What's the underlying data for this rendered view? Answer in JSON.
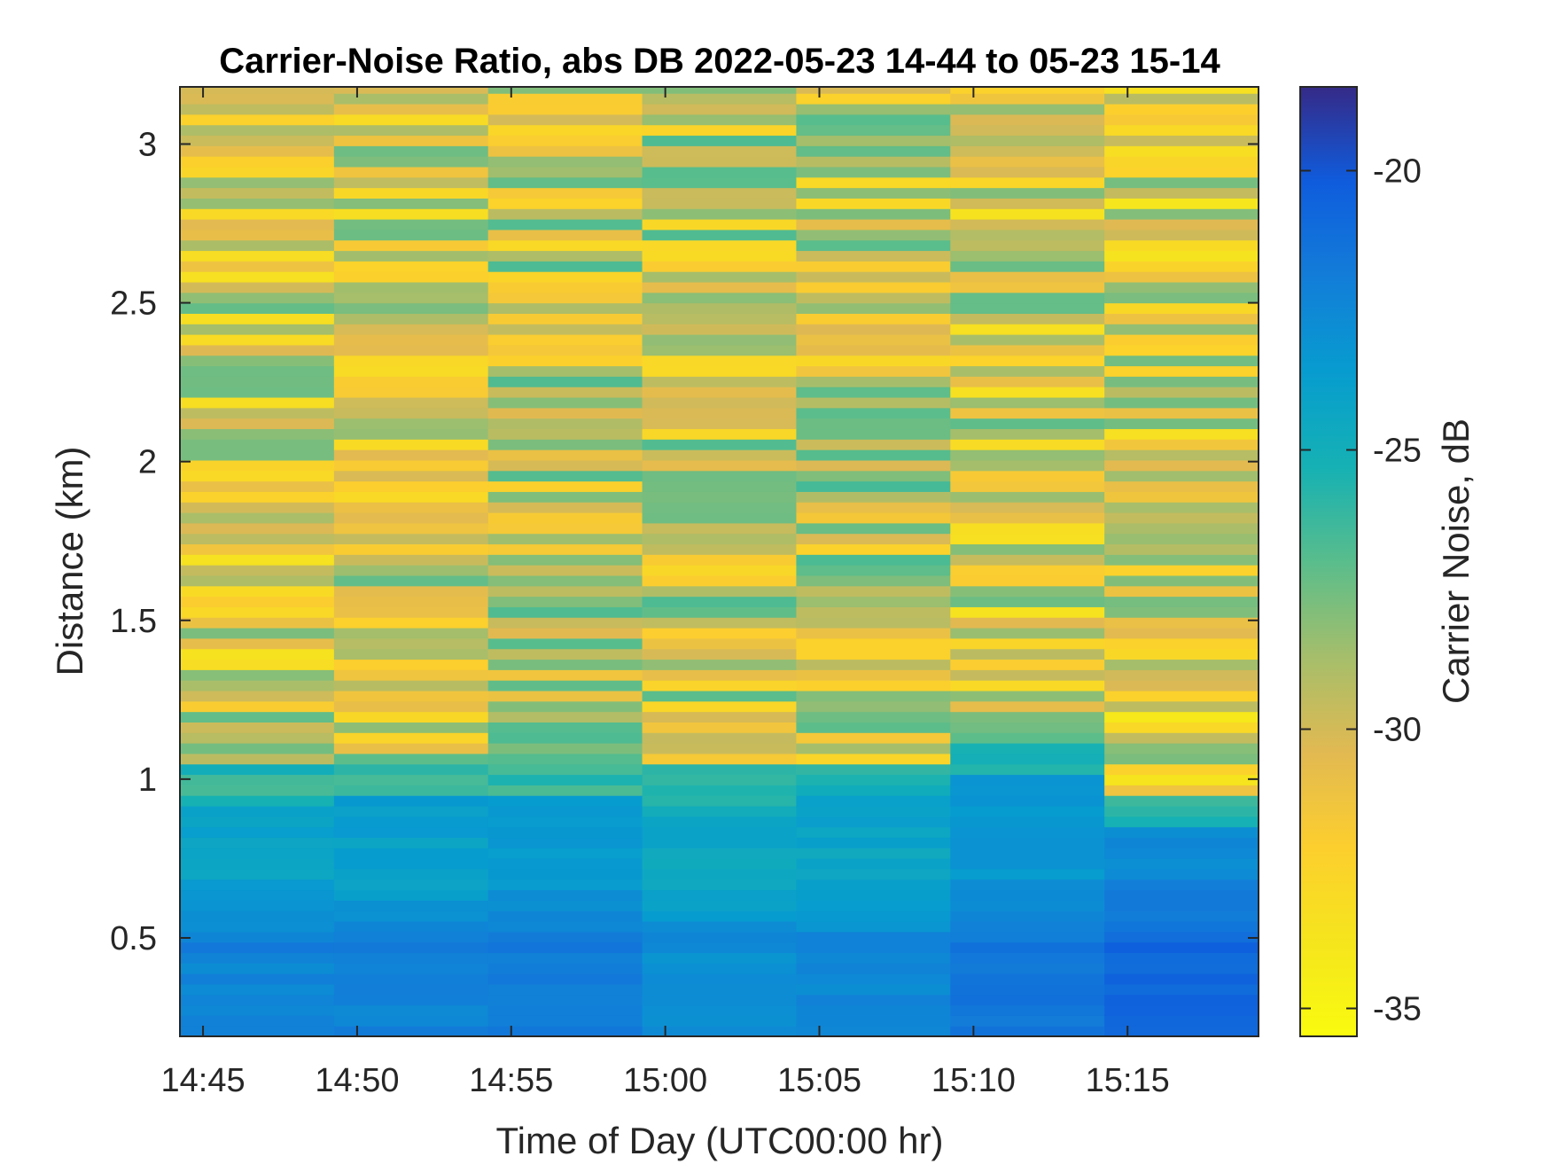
{
  "chart_data": {
    "type": "heatmap",
    "title": "Carrier-Noise Ratio, abs DB 2022-05-23 14-44 to 05-23 15-14",
    "xlabel": "Time of Day (UTC00:00 hr)",
    "ylabel": "Distance (km)",
    "colorbar_label": "Carrier Noise, dB",
    "x_ticks": [
      "14:45",
      "14:50",
      "14:55",
      "15:00",
      "15:05",
      "15:10",
      "15:15"
    ],
    "y_ticks": [
      "0.5",
      "1",
      "1.5",
      "2",
      "2.5",
      "3"
    ],
    "colorbar_ticks": [
      "-20",
      "-25",
      "-30",
      "-35"
    ],
    "colorbar_range": [
      -35.5,
      -18.5
    ],
    "colormap": "parula",
    "colormap_reversed": true,
    "xlim": [
      "14:44:15",
      "15:19:15"
    ],
    "ylim": [
      0.19,
      3.18
    ],
    "time_columns": [
      "14:44:15",
      "14:49:15",
      "14:54:15",
      "14:59:15",
      "15:04:15",
      "15:09:15",
      "15:14:15"
    ],
    "column_duration_minutes": 5,
    "distance_bin_km": 0.033,
    "near_range_boundary_km": [
      0.93,
      0.95,
      0.95,
      0.92,
      0.94,
      1.0,
      0.84
    ],
    "near_range_mean_db": [
      -21.2,
      -21.0,
      -20.6,
      -21.6,
      -21.3,
      -20.4,
      -19.6
    ],
    "far_range_mean_db": [
      -30.5,
      -30.2,
      -29.8,
      -29.9,
      -29.6,
      -30.3,
      -30.8
    ],
    "value_spread_db": 3.3
  }
}
